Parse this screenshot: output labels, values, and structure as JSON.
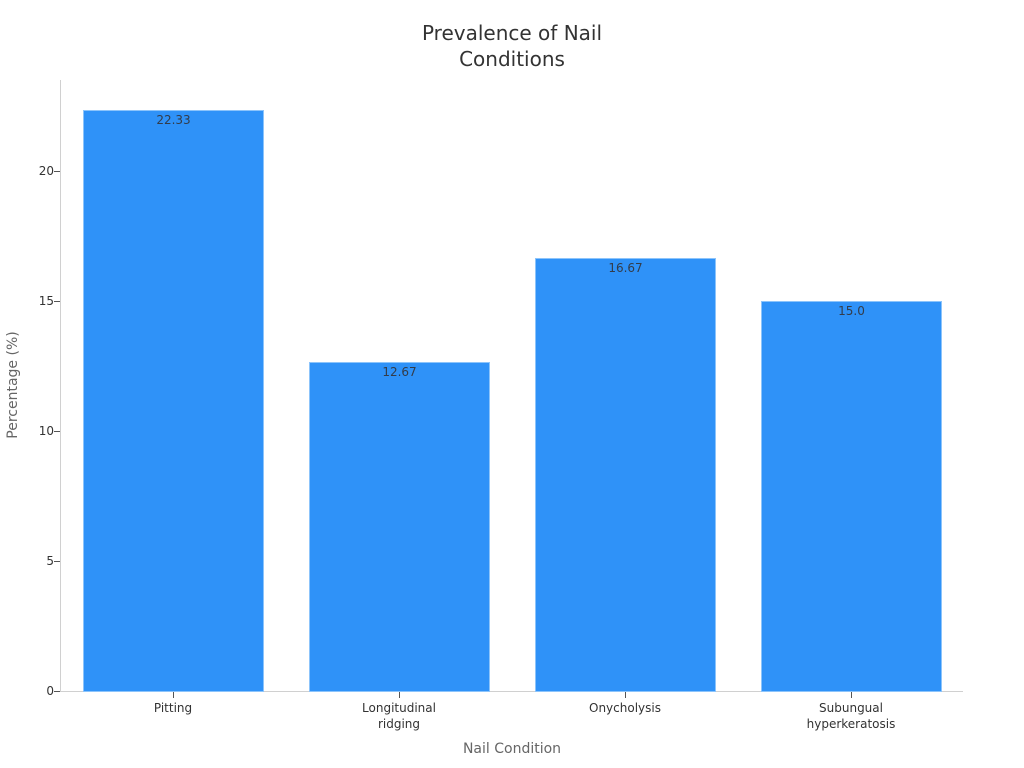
{
  "chart_data": {
    "type": "bar",
    "title": "Prevalence of Nail Conditions",
    "title_lines": [
      "Prevalence of Nail",
      "Conditions"
    ],
    "xlabel": "Nail Condition",
    "ylabel": "Percentage (%)",
    "categories": [
      "Pitting",
      "Longitudinal ridging",
      "Onycholysis",
      "Subungual hyperkeratosis"
    ],
    "category_lines": [
      [
        "Pitting"
      ],
      [
        "Longitudinal",
        "ridging"
      ],
      [
        "Onycholysis"
      ],
      [
        "Subungual",
        "hyperkeratosis"
      ]
    ],
    "values": [
      22.33,
      12.67,
      16.67,
      15.0
    ],
    "value_labels": [
      "22.33",
      "12.67",
      "16.67",
      "15.0"
    ],
    "yticks": [
      "0",
      "5",
      "10",
      "15",
      "20"
    ],
    "ylim": [
      0,
      23.5
    ],
    "grid": false,
    "legend": null,
    "bar_color": "#2f92f8"
  }
}
